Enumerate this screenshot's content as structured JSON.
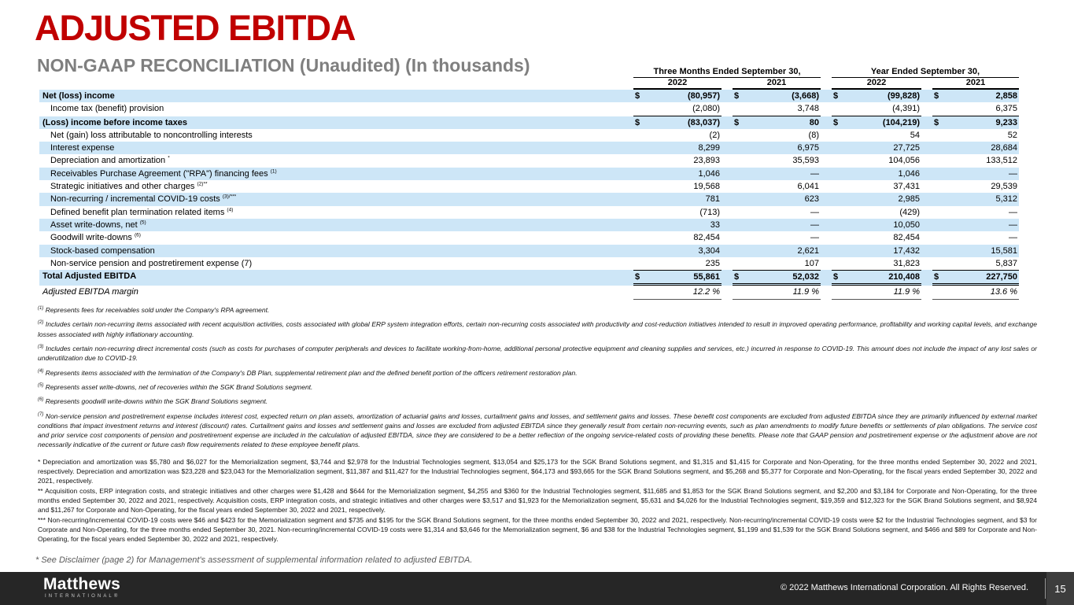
{
  "slide": {
    "title": "ADJUSTED EBITDA",
    "subtitle": "NON-GAAP RECONCILIATION (Unaudited) (In thousands)"
  },
  "table": {
    "col_groups": [
      "Three Months Ended September 30,",
      "Year Ended September 30,"
    ],
    "years": [
      "2022",
      "2021",
      "2022",
      "2021"
    ],
    "rows": [
      {
        "label": "Net (loss) income",
        "sup": "",
        "indent": 0,
        "bold": true,
        "shaded": true,
        "dollar": true,
        "values": [
          "(80,957)",
          "(3,668)",
          "(99,828)",
          "2,858"
        ]
      },
      {
        "label": "Income tax (benefit) provision",
        "sup": "",
        "indent": 1,
        "underline": "single",
        "values": [
          "(2,080)",
          "3,748",
          "(4,391)",
          "6,375"
        ]
      },
      {
        "label": "(Loss) income before income taxes",
        "sup": "",
        "indent": 0,
        "bold": true,
        "shaded": true,
        "dollar": true,
        "values": [
          "(83,037)",
          "80",
          "(104,219)",
          "9,233"
        ]
      },
      {
        "label": "Net (gain) loss attributable to noncontrolling interests",
        "sup": "",
        "indent": 1,
        "values": [
          "(2)",
          "(8)",
          "54",
          "52"
        ]
      },
      {
        "label": "Interest expense",
        "sup": "",
        "indent": 1,
        "shaded": true,
        "values": [
          "8,299",
          "6,975",
          "27,725",
          "28,684"
        ]
      },
      {
        "label": "Depreciation and amortization",
        "sup": "*",
        "indent": 1,
        "values": [
          "23,893",
          "35,593",
          "104,056",
          "133,512"
        ]
      },
      {
        "label": "Receivables Purchase Agreement (\"RPA\") financing fees",
        "sup": "(1)",
        "indent": 1,
        "shaded": true,
        "values": [
          "1,046",
          "—",
          "1,046",
          "—"
        ]
      },
      {
        "label": "Strategic initiatives and other charges",
        "sup": "(2)**",
        "indent": 1,
        "values": [
          "19,568",
          "6,041",
          "37,431",
          "29,539"
        ]
      },
      {
        "label": "Non-recurring / incremental COVID-19 costs",
        "sup": "(3)/***",
        "indent": 1,
        "shaded": true,
        "values": [
          "781",
          "623",
          "2,985",
          "5,312"
        ]
      },
      {
        "label": "Defined benefit plan termination related items",
        "sup": "(4)",
        "indent": 1,
        "values": [
          "(713)",
          "—",
          "(429)",
          "—"
        ]
      },
      {
        "label": "Asset write-downs, net",
        "sup": "(5)",
        "indent": 1,
        "shaded": true,
        "values": [
          "33",
          "—",
          "10,050",
          "—"
        ]
      },
      {
        "label": "Goodwill write-downs",
        "sup": "(6)",
        "indent": 1,
        "values": [
          "82,454",
          "—",
          "82,454",
          "—"
        ]
      },
      {
        "label": "Stock-based compensation",
        "sup": "",
        "indent": 1,
        "shaded": true,
        "values": [
          "3,304",
          "2,621",
          "17,432",
          "15,581"
        ]
      },
      {
        "label": "Non-service pension and postretirement expense (7)",
        "sup": "",
        "indent": 1,
        "values": [
          "235",
          "107",
          "31,823",
          "5,837"
        ]
      },
      {
        "label": "Total Adjusted EBITDA",
        "sup": "",
        "indent": 0,
        "bold": true,
        "shaded": true,
        "dollar": true,
        "topline": true,
        "underline": "double",
        "values": [
          "55,861",
          "52,032",
          "210,408",
          "227,750"
        ]
      },
      {
        "label": "Adjusted EBITDA margin",
        "sup": "",
        "indent": 0,
        "italic": true,
        "underline": "thin",
        "values": [
          "12.2 %",
          "11.9 %",
          "11.9 %",
          "13.6 %"
        ]
      }
    ]
  },
  "footnotes": [
    {
      "marker": "(1)",
      "text": "Represents fees for receivables sold under the Company's RPA agreement."
    },
    {
      "marker": "(2)",
      "text": "Includes certain non-recurring items associated with recent acquisition activities, costs associated with global ERP system integration efforts, certain non-recurring costs associated with productivity and cost-reduction initiatives intended to result in improved operating performance, profitability and working capital levels, and exchange losses associated with highly inflationary accounting."
    },
    {
      "marker": "(3)",
      "text": "Includes certain non-recurring direct incremental costs (such as costs for purchases of computer peripherals and devices to facilitate working-from-home, additional personal protective equipment and cleaning supplies and services, etc.) incurred in response to COVID-19. This amount does not include the impact of any lost sales or underutilization due to COVID-19."
    },
    {
      "marker": "(4)",
      "text": "Represents items associated with the termination of the Company's DB Plan, supplemental retirement plan and the defined benefit portion of the officers retirement restoration plan."
    },
    {
      "marker": "(5)",
      "text": "Represents asset write-downs, net of recoveries within the SGK Brand Solutions segment."
    },
    {
      "marker": "(6)",
      "text": "Represents goodwill write-downs within the SGK Brand Solutions segment."
    },
    {
      "marker": "(7)",
      "text": "Non-service pension and postretirement expense includes interest cost, expected return on plan assets, amortization of actuarial gains and losses, curtailment gains and losses, and settlement gains and losses. These benefit cost components are excluded from adjusted EBITDA since they are primarily influenced by external market conditions that impact investment returns and interest (discount) rates. Curtailment gains and losses and settlement gains and losses are excluded from adjusted EBITDA since they generally result from certain non-recurring events, such as plan amendments to modify future benefits or settlements of plan obligations. The service cost and prior service cost components of pension and postretirement expense are included in the calculation of adjusted EBITDA, since they are considered to be a better reflection of the ongoing service-related costs of providing these benefits. Please note that GAAP pension and postretirement expense or the adjustment above are not necessarily indicative of the current or future cash flow requirements related to these employee benefit plans."
    }
  ],
  "asterisk_notes": [
    {
      "marker": "*",
      "text": "Depreciation and amortization was $5,780 and $6,027 for the Memorialization segment, $3,744 and $2,978 for the Industrial Technologies segment, $13,054 and $25,173 for the SGK Brand Solutions segment, and $1,315 and $1,415 for Corporate and Non-Operating, for the three months ended September 30, 2022 and 2021, respectively. Depreciation and amortization was $23,228 and $23,043 for the Memorialization segment, $11,387 and $11,427 for the Industrial Technologies segment, $64,173 and $93,665 for the SGK Brand Solutions segment, and $5,268 and $5,377 for Corporate and Non-Operating, for the fiscal years ended September 30, 2022 and 2021, respectively."
    },
    {
      "marker": "**",
      "text": "Acquisition costs, ERP integration costs, and strategic initiatives and other charges were $1,428 and $644 for the Memorialization segment, $4,255 and $360 for the Industrial Technologies segment, $11,685 and $1,853 for the SGK Brand Solutions segment, and $2,200 and $3,184 for Corporate and Non-Operating, for the three months ended September 30, 2022 and 2021, respectively. Acquisition costs, ERP integration costs, and strategic initiatives and other charges were $3,517 and $1,923 for the Memorialization segment, $5,631 and $4,026 for the Industrial Technologies segment, $19,359 and $12,323 for the SGK Brand Solutions segment, and $8,924 and $11,267 for Corporate and Non-Operating, for the fiscal years ended September 30, 2022 and 2021, respectively."
    },
    {
      "marker": "***",
      "text": "Non-recurring/incremental COVID-19 costs were $46 and $423 for the Memorialization segment and $735 and $195 for the SGK Brand Solutions segment, for the three months ended September 30, 2022 and 2021, respectively. Non-recurring/incremental COVID-19 costs were $2 for the Industrial Technologies segment, and $3 for Corporate and Non-Operating, for the three months ended September 30, 2021. Non-recurring/incremental COVID-19 costs were $1,314 and $3,646 for the Memorialization segment, $6 and $38 for the Industrial Technologies segment, $1,199 and $1,539 for the SGK Brand Solutions segment, and $466 and $89 for Corporate and Non-Operating, for the fiscal years ended September 30, 2022 and 2021, respectively."
    }
  ],
  "disclaimer": "* See Disclaimer (page 2) for Management's assessment of supplemental information related to adjusted EBITDA.",
  "footer": {
    "logo_main": "Matthews",
    "logo_sub": "INTERNATIONAL®",
    "copyright": "© 2022 Matthews International Corporation. All Rights Reserved.",
    "page_number": "15"
  },
  "colors": {
    "title_red": "#c00000",
    "subtitle_gray": "#7f7f7f",
    "row_band_blue": "#cde6f7",
    "footer_bar": "#262626"
  }
}
